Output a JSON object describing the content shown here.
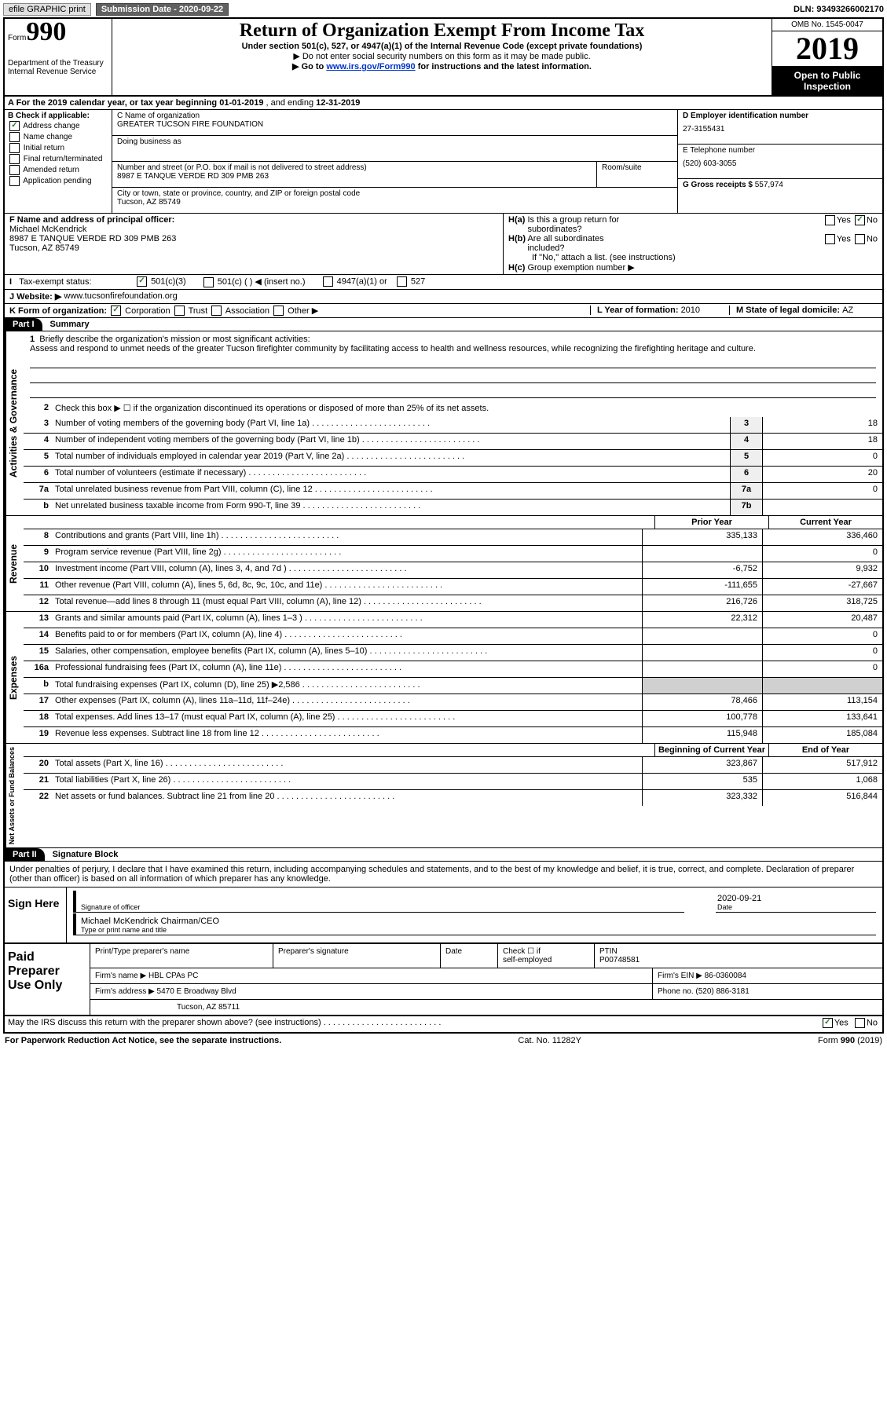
{
  "topbar": {
    "efile": "efile GRAPHIC print",
    "subdate_label": "Submission Date - ",
    "subdate": "2020-09-22",
    "dln_label": "DLN: ",
    "dln": "93493266002170"
  },
  "header": {
    "form_label": "Form",
    "form_num": "990",
    "dept1": "Department of the Treasury",
    "dept2": "Internal Revenue Service",
    "title": "Return of Organization Exempt From Income Tax",
    "sub": "Under section 501(c), 527, or 4947(a)(1) of the Internal Revenue Code (except private foundations)",
    "note1": "Do not enter social security numbers on this form as it may be made public.",
    "note2_pre": "Go to ",
    "note2_link": "www.irs.gov/Form990",
    "note2_post": " for instructions and the latest information.",
    "omb": "OMB No. 1545-0047",
    "year": "2019",
    "open_pub1": "Open to Public",
    "open_pub2": "Inspection"
  },
  "rowA": {
    "text_pre": "A For the 2019 calendar year, or tax year beginning ",
    "beg": "01-01-2019",
    "mid": " , and ending ",
    "end": "12-31-2019"
  },
  "colB": {
    "label": "B Check if applicable:",
    "addr_change": "Address change",
    "name_change": "Name change",
    "initial": "Initial return",
    "final": "Final return/terminated",
    "amended": "Amended return",
    "app_pending": "Application pending"
  },
  "colC": {
    "name_label": "C Name of organization",
    "name": "GREATER TUCSON FIRE FOUNDATION",
    "dba_label": "Doing business as",
    "dba": "",
    "addr_label": "Number and street (or P.O. box if mail is not delivered to street address)",
    "room_label": "Room/suite",
    "addr": "8987 E TANQUE VERDE RD 309 PMB 263",
    "city_label": "City or town, state or province, country, and ZIP or foreign postal code",
    "city": "Tucson, AZ  85749"
  },
  "colDE": {
    "d_label": "D Employer identification number",
    "ein": "27-3155431",
    "e_label": "E Telephone number",
    "phone": "(520) 603-3055",
    "g_label": "G Gross receipts $ ",
    "gross": "557,974"
  },
  "rowF": {
    "label": "F  Name and address of principal officer:",
    "name": "Michael McKendrick",
    "addr": "8987 E TANQUE VERDE RD 309 PMB 263",
    "city": "Tucson, AZ  85749"
  },
  "rowH": {
    "ha": "H(a)  Is this a group return for subordinates?",
    "yes": "Yes",
    "no": "No",
    "hb": "H(b)  Are all subordinates included?",
    "hb_note": "If \"No,\" attach a list. (see instructions)",
    "hc": "H(c)  Group exemption number ▶"
  },
  "rowI": {
    "label": "I   Tax-exempt status:",
    "c3": "501(c)(3)",
    "c": "501(c) (   ) ◀ (insert no.)",
    "a1": "4947(a)(1) or",
    "s527": "527"
  },
  "rowJ": {
    "label": "J   Website: ▶ ",
    "val": "www.tucsonfirefoundation.org"
  },
  "rowK": {
    "label": "K Form of organization:",
    "corp": "Corporation",
    "trust": "Trust",
    "assoc": "Association",
    "other": "Other ▶",
    "l_label": "L Year of formation: ",
    "l_val": "2010",
    "m_label": "M State of legal domicile: ",
    "m_val": "AZ"
  },
  "part1": {
    "part": "Part I",
    "title": "Summary"
  },
  "summary": {
    "line1_label": "Briefly describe the organization's mission or most significant activities:",
    "mission": "Assess and respond to unmet needs of the greater Tucson firefighter community by facilitating access to health and wellness resources, while recognizing the firefighting heritage and culture.",
    "line2": "Check this box ▶ ☐  if the organization discontinued its operations or disposed of more than 25% of its net assets.",
    "rows_ag": [
      {
        "n": "3",
        "t": "Number of voting members of the governing body (Part VI, line 1a)",
        "box": "3",
        "v": "18"
      },
      {
        "n": "4",
        "t": "Number of independent voting members of the governing body (Part VI, line 1b)",
        "box": "4",
        "v": "18"
      },
      {
        "n": "5",
        "t": "Total number of individuals employed in calendar year 2019 (Part V, line 2a)",
        "box": "5",
        "v": "0"
      },
      {
        "n": "6",
        "t": "Total number of volunteers (estimate if necessary)",
        "box": "6",
        "v": "20"
      },
      {
        "n": "7a",
        "t": "Total unrelated business revenue from Part VIII, column (C), line 12",
        "box": "7a",
        "v": "0"
      },
      {
        "n": "b",
        "t": "Net unrelated business taxable income from Form 990-T, line 39",
        "box": "7b",
        "v": ""
      }
    ],
    "prior": "Prior Year",
    "current": "Current Year",
    "rows_rev": [
      {
        "n": "8",
        "t": "Contributions and grants (Part VIII, line 1h)",
        "p": "335,133",
        "c": "336,460"
      },
      {
        "n": "9",
        "t": "Program service revenue (Part VIII, line 2g)",
        "p": "",
        "c": "0"
      },
      {
        "n": "10",
        "t": "Investment income (Part VIII, column (A), lines 3, 4, and 7d )",
        "p": "-6,752",
        "c": "9,932"
      },
      {
        "n": "11",
        "t": "Other revenue (Part VIII, column (A), lines 5, 6d, 8c, 9c, 10c, and 11e)",
        "p": "-111,655",
        "c": "-27,667"
      },
      {
        "n": "12",
        "t": "Total revenue—add lines 8 through 11 (must equal Part VIII, column (A), line 12)",
        "p": "216,726",
        "c": "318,725"
      }
    ],
    "rows_exp": [
      {
        "n": "13",
        "t": "Grants and similar amounts paid (Part IX, column (A), lines 1–3 )",
        "p": "22,312",
        "c": "20,487"
      },
      {
        "n": "14",
        "t": "Benefits paid to or for members (Part IX, column (A), line 4)",
        "p": "",
        "c": "0"
      },
      {
        "n": "15",
        "t": "Salaries, other compensation, employee benefits (Part IX, column (A), lines 5–10)",
        "p": "",
        "c": "0"
      },
      {
        "n": "16a",
        "t": "Professional fundraising fees (Part IX, column (A), line 11e)",
        "p": "",
        "c": "0"
      },
      {
        "n": "b",
        "t": "Total fundraising expenses (Part IX, column (D), line 25) ▶2,586",
        "p": "SHADE",
        "c": "SHADE"
      },
      {
        "n": "17",
        "t": "Other expenses (Part IX, column (A), lines 11a–11d, 11f–24e)",
        "p": "78,466",
        "c": "113,154"
      },
      {
        "n": "18",
        "t": "Total expenses. Add lines 13–17 (must equal Part IX, column (A), line 25)",
        "p": "100,778",
        "c": "133,641"
      },
      {
        "n": "19",
        "t": "Revenue less expenses. Subtract line 18 from line 12",
        "p": "115,948",
        "c": "185,084"
      }
    ],
    "boy": "Beginning of Current Year",
    "eoy": "End of Year",
    "rows_na": [
      {
        "n": "20",
        "t": "Total assets (Part X, line 16)",
        "p": "323,867",
        "c": "517,912"
      },
      {
        "n": "21",
        "t": "Total liabilities (Part X, line 26)",
        "p": "535",
        "c": "1,068"
      },
      {
        "n": "22",
        "t": "Net assets or fund balances. Subtract line 21 from line 20",
        "p": "323,332",
        "c": "516,844"
      }
    ]
  },
  "vlabels": {
    "ag": "Activities & Governance",
    "rev": "Revenue",
    "exp": "Expenses",
    "na": "Net Assets or Fund Balances"
  },
  "part2": {
    "part": "Part II",
    "title": "Signature Block",
    "decl": "Under penalties of perjury, I declare that I have examined this return, including accompanying schedules and statements, and to the best of my knowledge and belief, it is true, correct, and complete. Declaration of preparer (other than officer) is based on all information of which preparer has any knowledge."
  },
  "sign": {
    "here": "Sign Here",
    "sig_of_officer": "Signature of officer",
    "date_label": "Date",
    "date": "2020-09-21",
    "name_title": "Michael McKendrick  Chairman/CEO",
    "name_title_label": "Type or print name and title"
  },
  "prep": {
    "label": "Paid Preparer Use Only",
    "c1": "Print/Type preparer's name",
    "c2": "Preparer's signature",
    "c3": "Date",
    "c4a": "Check ☐ if",
    "c4b": "self-employed",
    "c5l": "PTIN",
    "c5v": "P00748581",
    "firm_name_l": "Firm's name    ▶ ",
    "firm_name": "HBL CPAs PC",
    "firm_ein_l": "Firm's EIN ▶ ",
    "firm_ein": "86-0360084",
    "firm_addr_l": "Firm's address ▶ ",
    "firm_addr1": "5470 E Broadway Blvd",
    "firm_addr2": "Tucson, AZ  85711",
    "phone_l": "Phone no. ",
    "phone": "(520) 886-3181"
  },
  "discuss": {
    "q": "May the IRS discuss this return with the preparer shown above? (see instructions)",
    "yes": "Yes",
    "no": "No"
  },
  "footer": {
    "left": "For Paperwork Reduction Act Notice, see the separate instructions.",
    "mid": "Cat. No. 11282Y",
    "right": "Form 990 (2019)"
  }
}
